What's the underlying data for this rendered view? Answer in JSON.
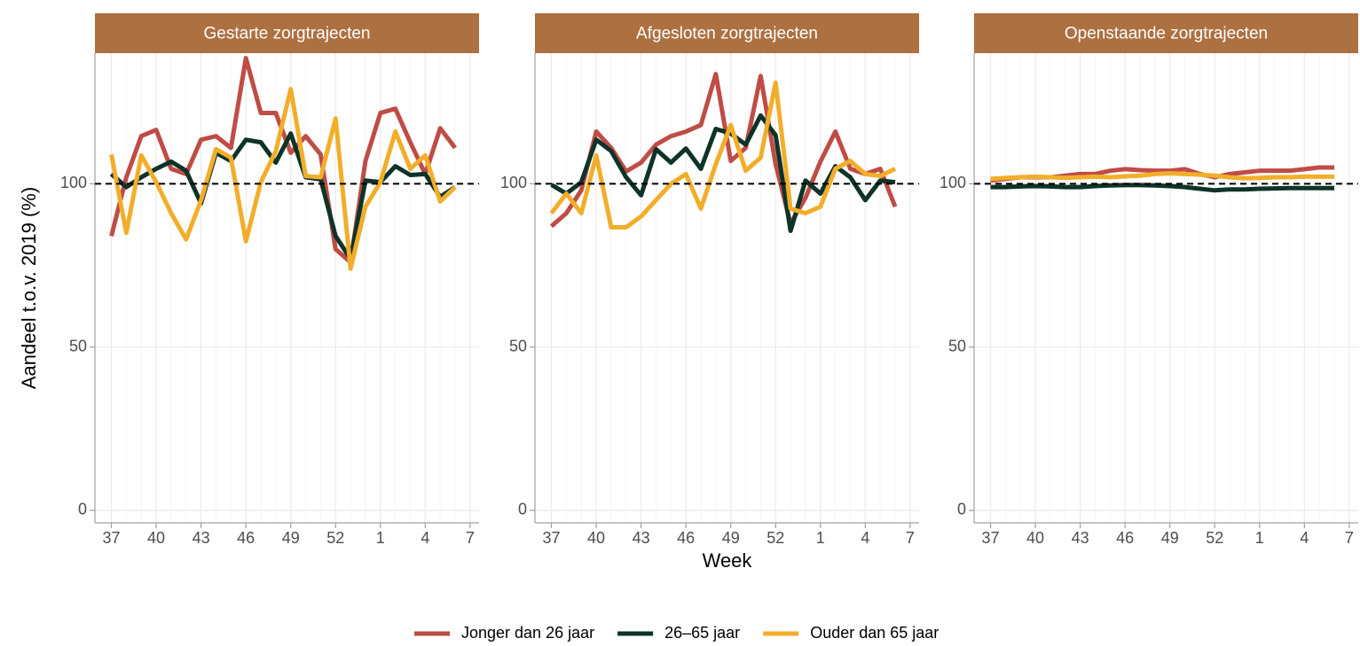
{
  "chart_data": [
    {
      "type": "line",
      "title": "Gestarte zorgtrajecten",
      "ylabel": "Aandeel t.o.v. 2019 (%)",
      "x": [
        37,
        38,
        39,
        40,
        41,
        42,
        43,
        44,
        45,
        46,
        47,
        48,
        49,
        50,
        51,
        52,
        53,
        54,
        55,
        56,
        57,
        58,
        59,
        60
      ],
      "xlim": [
        35.9,
        61.6
      ],
      "xticks": [
        37,
        40,
        43,
        46,
        49,
        52,
        {
          "value": 55,
          "label": "1"
        },
        {
          "value": 58,
          "label": "4"
        },
        {
          "value": 61,
          "label": "7"
        }
      ],
      "ylim": [
        -3.8,
        140
      ],
      "yticks": [
        0,
        50,
        100
      ],
      "hline": 100,
      "grid": true,
      "series": [
        {
          "name": "Jonger dan 26 jaar",
          "color": "#bf4c45",
          "values": [
            84,
            102,
            114.6,
            116.5,
            104.6,
            103,
            113.5,
            114.6,
            111,
            138.5,
            121.7,
            121.7,
            109.5,
            114.6,
            109,
            80,
            76,
            107,
            121.7,
            123,
            112.7,
            103,
            117,
            111
          ]
        },
        {
          "name": "26–65 jaar",
          "color": "#0e3329",
          "values": [
            103,
            99,
            102,
            104.6,
            106.8,
            104,
            94,
            109.5,
            107,
            113.5,
            112.7,
            106.5,
            115.4,
            102,
            101.4,
            84,
            77,
            101,
            100.5,
            105.4,
            102.7,
            103,
            96,
            99
          ]
        },
        {
          "name": "Ouder dan 65 jaar",
          "color": "#f2ae2a",
          "values": [
            109,
            85,
            108.7,
            100.5,
            91,
            83,
            95,
            110.6,
            108,
            82.4,
            100.5,
            110,
            129,
            102.4,
            102,
            120,
            74,
            93,
            100.5,
            116,
            104.6,
            108.7,
            94.6,
            99
          ]
        }
      ]
    },
    {
      "type": "line",
      "title": "Afgesloten zorgtrajecten",
      "xlabel": "Week",
      "x": [
        37,
        38,
        39,
        40,
        41,
        42,
        43,
        44,
        45,
        46,
        47,
        48,
        49,
        50,
        51,
        52,
        53,
        54,
        55,
        56,
        57,
        58,
        59,
        60
      ],
      "xlim": [
        35.9,
        61.6
      ],
      "xticks": [
        37,
        40,
        43,
        46,
        49,
        52,
        {
          "value": 55,
          "label": "1"
        },
        {
          "value": 58,
          "label": "4"
        },
        {
          "value": 61,
          "label": "7"
        }
      ],
      "ylim": [
        -3.8,
        140
      ],
      "yticks": [
        0,
        50,
        100
      ],
      "hline": 100,
      "grid": true,
      "series": [
        {
          "color": "#bf4c45",
          "values": [
            87,
            91,
            98,
            116,
            111,
            103.8,
            106.5,
            112,
            114.6,
            116,
            118,
            133.6,
            107,
            111,
            133,
            106,
            87.8,
            95.7,
            106.8,
            116,
            104.6,
            103,
            104.6,
            93
          ]
        },
        {
          "color": "#0e3329",
          "values": [
            99.7,
            97,
            100.5,
            113.5,
            110,
            102,
            96.5,
            110.6,
            106.5,
            110.8,
            104.6,
            116.8,
            115.4,
            112,
            120.9,
            114.9,
            85.6,
            101,
            97,
            105.4,
            102,
            95,
            101,
            100.5
          ]
        },
        {
          "color": "#f2ae2a",
          "values": [
            91,
            97,
            91,
            108.7,
            86.7,
            86.7,
            90,
            95,
            100,
            103,
            92.4,
            106,
            118,
            104,
            108,
            131,
            92.4,
            91,
            93,
            104.6,
            107,
            103,
            102.4,
            104.6
          ]
        }
      ]
    },
    {
      "type": "line",
      "title": "Openstaande zorgtrajecten",
      "x": [
        37,
        38,
        39,
        40,
        41,
        42,
        43,
        44,
        45,
        46,
        47,
        48,
        49,
        50,
        51,
        52,
        53,
        54,
        55,
        56,
        57,
        58,
        59,
        60
      ],
      "xlim": [
        35.9,
        61.6
      ],
      "xticks": [
        37,
        40,
        43,
        46,
        49,
        52,
        {
          "value": 55,
          "label": "1"
        },
        {
          "value": 58,
          "label": "4"
        },
        {
          "value": 61,
          "label": "7"
        }
      ],
      "ylim": [
        -3.8,
        140
      ],
      "yticks": [
        0,
        50,
        100
      ],
      "hline": 100,
      "grid": true,
      "series": [
        {
          "color": "#bf4c45",
          "values": [
            101,
            101.5,
            102,
            102,
            102,
            102.5,
            103,
            103,
            104,
            104.5,
            104.2,
            104,
            104,
            104.5,
            103,
            102,
            103,
            103.5,
            104,
            104,
            104,
            104.5,
            105,
            105
          ]
        },
        {
          "color": "#0e3329",
          "values": [
            99,
            99,
            99.2,
            99.3,
            99.2,
            99,
            99,
            99.3,
            99.5,
            99.6,
            99.6,
            99.5,
            99.3,
            99,
            98.5,
            98,
            98.3,
            98.3,
            98.5,
            98.6,
            98.7,
            98.7,
            98.7,
            98.7
          ]
        },
        {
          "color": "#f2ae2a",
          "values": [
            101.5,
            101.8,
            102,
            102.2,
            102,
            101.8,
            102,
            102.2,
            102,
            102.3,
            102.5,
            103,
            103.2,
            103,
            102.8,
            102.5,
            102,
            101.7,
            101.8,
            102,
            102,
            102.2,
            102.2,
            102.2
          ]
        }
      ]
    }
  ]
}
